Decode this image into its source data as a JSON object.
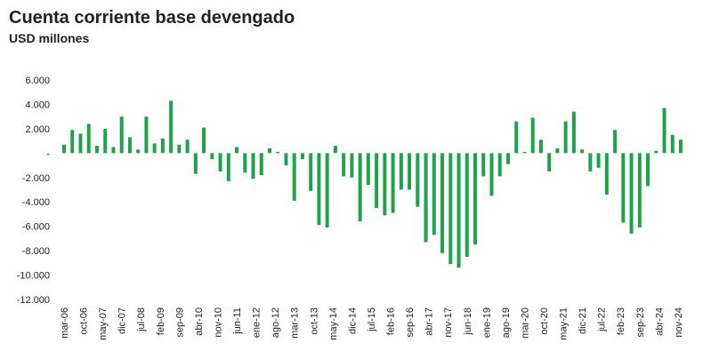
{
  "chart_data": {
    "type": "bar",
    "title": "Cuenta corriente base devengado",
    "subtitle": "USD millones",
    "x": [
      "2006-03",
      "2006-06",
      "2006-09",
      "2006-12",
      "2007-03",
      "2007-06",
      "2007-09",
      "2007-12",
      "2008-03",
      "2008-06",
      "2008-09",
      "2008-12",
      "2009-03",
      "2009-06",
      "2009-09",
      "2009-12",
      "2010-03",
      "2010-06",
      "2010-09",
      "2010-12",
      "2011-03",
      "2011-06",
      "2011-09",
      "2011-12",
      "2012-03",
      "2012-06",
      "2012-09",
      "2012-12",
      "2013-03",
      "2013-06",
      "2013-09",
      "2013-12",
      "2014-03",
      "2014-06",
      "2014-09",
      "2014-12",
      "2015-03",
      "2015-06",
      "2015-09",
      "2015-12",
      "2016-03",
      "2016-06",
      "2016-09",
      "2016-12",
      "2017-03",
      "2017-06",
      "2017-09",
      "2017-12",
      "2018-03",
      "2018-06",
      "2018-09",
      "2018-12",
      "2019-03",
      "2019-06",
      "2019-09",
      "2019-12",
      "2020-03",
      "2020-06",
      "2020-09",
      "2020-12",
      "2021-03",
      "2021-06",
      "2021-09",
      "2021-12",
      "2022-03",
      "2022-06",
      "2022-09",
      "2022-12",
      "2023-03",
      "2023-06",
      "2023-09",
      "2023-12",
      "2024-03",
      "2024-06",
      "2024-09",
      "2024-12"
    ],
    "values": [
      700,
      1900,
      1600,
      2400,
      600,
      2000,
      500,
      3000,
      1300,
      300,
      3000,
      800,
      1200,
      4300,
      700,
      1100,
      -1700,
      2100,
      -500,
      -1500,
      -2300,
      500,
      -1600,
      -2100,
      -1800,
      400,
      100,
      -1000,
      -3900,
      -500,
      -3100,
      -5900,
      -6100,
      600,
      -1900,
      -2000,
      -5600,
      -2600,
      -4500,
      -5100,
      -4900,
      -3000,
      -3000,
      -4400,
      -7300,
      -6700,
      -8200,
      -9100,
      -9400,
      -8500,
      -7500,
      -1900,
      -3500,
      -1900,
      -900,
      2600,
      100,
      2900,
      1100,
      -1500,
      400,
      2600,
      3400,
      300,
      -1500,
      -1200,
      -3400,
      1900,
      -5700,
      -6600,
      -6100,
      -2700,
      200,
      3700,
      1500,
      1100
    ],
    "color": "#1fa34a",
    "ylim": [
      -12000,
      6000
    ],
    "yticks": [
      {
        "value": 6000,
        "label": "6.000"
      },
      {
        "value": 4000,
        "label": "4.000"
      },
      {
        "value": 2000,
        "label": "2.000"
      },
      {
        "value": 0,
        "label": "-"
      },
      {
        "value": -2000,
        "label": "-2.000"
      },
      {
        "value": -4000,
        "label": "-4.000"
      },
      {
        "value": -6000,
        "label": "-6.000"
      },
      {
        "value": -8000,
        "label": "-8.000"
      },
      {
        "value": -10000,
        "label": "-10.000"
      },
      {
        "value": -12000,
        "label": "-12.000"
      }
    ],
    "xticks": [
      {
        "value": "2006-03",
        "label": "mar-06"
      },
      {
        "value": "2006-10",
        "label": "oct-06"
      },
      {
        "value": "2007-05",
        "label": "may-07"
      },
      {
        "value": "2007-12",
        "label": "dic-07"
      },
      {
        "value": "2008-07",
        "label": "jul-08"
      },
      {
        "value": "2009-02",
        "label": "feb-09"
      },
      {
        "value": "2009-09",
        "label": "sep-09"
      },
      {
        "value": "2010-04",
        "label": "abr-10"
      },
      {
        "value": "2010-11",
        "label": "nov-10"
      },
      {
        "value": "2011-06",
        "label": "jun-11"
      },
      {
        "value": "2012-01",
        "label": "ene-12"
      },
      {
        "value": "2012-08",
        "label": "ago-12"
      },
      {
        "value": "2013-03",
        "label": "mar-13"
      },
      {
        "value": "2013-10",
        "label": "oct-13"
      },
      {
        "value": "2014-05",
        "label": "may-14"
      },
      {
        "value": "2014-12",
        "label": "dic-14"
      },
      {
        "value": "2015-07",
        "label": "jul-15"
      },
      {
        "value": "2016-02",
        "label": "feb-16"
      },
      {
        "value": "2016-09",
        "label": "sep-16"
      },
      {
        "value": "2017-04",
        "label": "abr-17"
      },
      {
        "value": "2017-11",
        "label": "nov-17"
      },
      {
        "value": "2018-06",
        "label": "jun-18"
      },
      {
        "value": "2019-01",
        "label": "ene-19"
      },
      {
        "value": "2019-08",
        "label": "ago-19"
      },
      {
        "value": "2020-03",
        "label": "mar-20"
      },
      {
        "value": "2020-10",
        "label": "oct-20"
      },
      {
        "value": "2021-05",
        "label": "may-21"
      },
      {
        "value": "2021-12",
        "label": "dic-21"
      },
      {
        "value": "2022-07",
        "label": "jul-22"
      },
      {
        "value": "2023-02",
        "label": "feb-23"
      },
      {
        "value": "2023-09",
        "label": "sep-23"
      },
      {
        "value": "2024-04",
        "label": "abr-24"
      },
      {
        "value": "2024-11",
        "label": "nov-24"
      }
    ]
  }
}
